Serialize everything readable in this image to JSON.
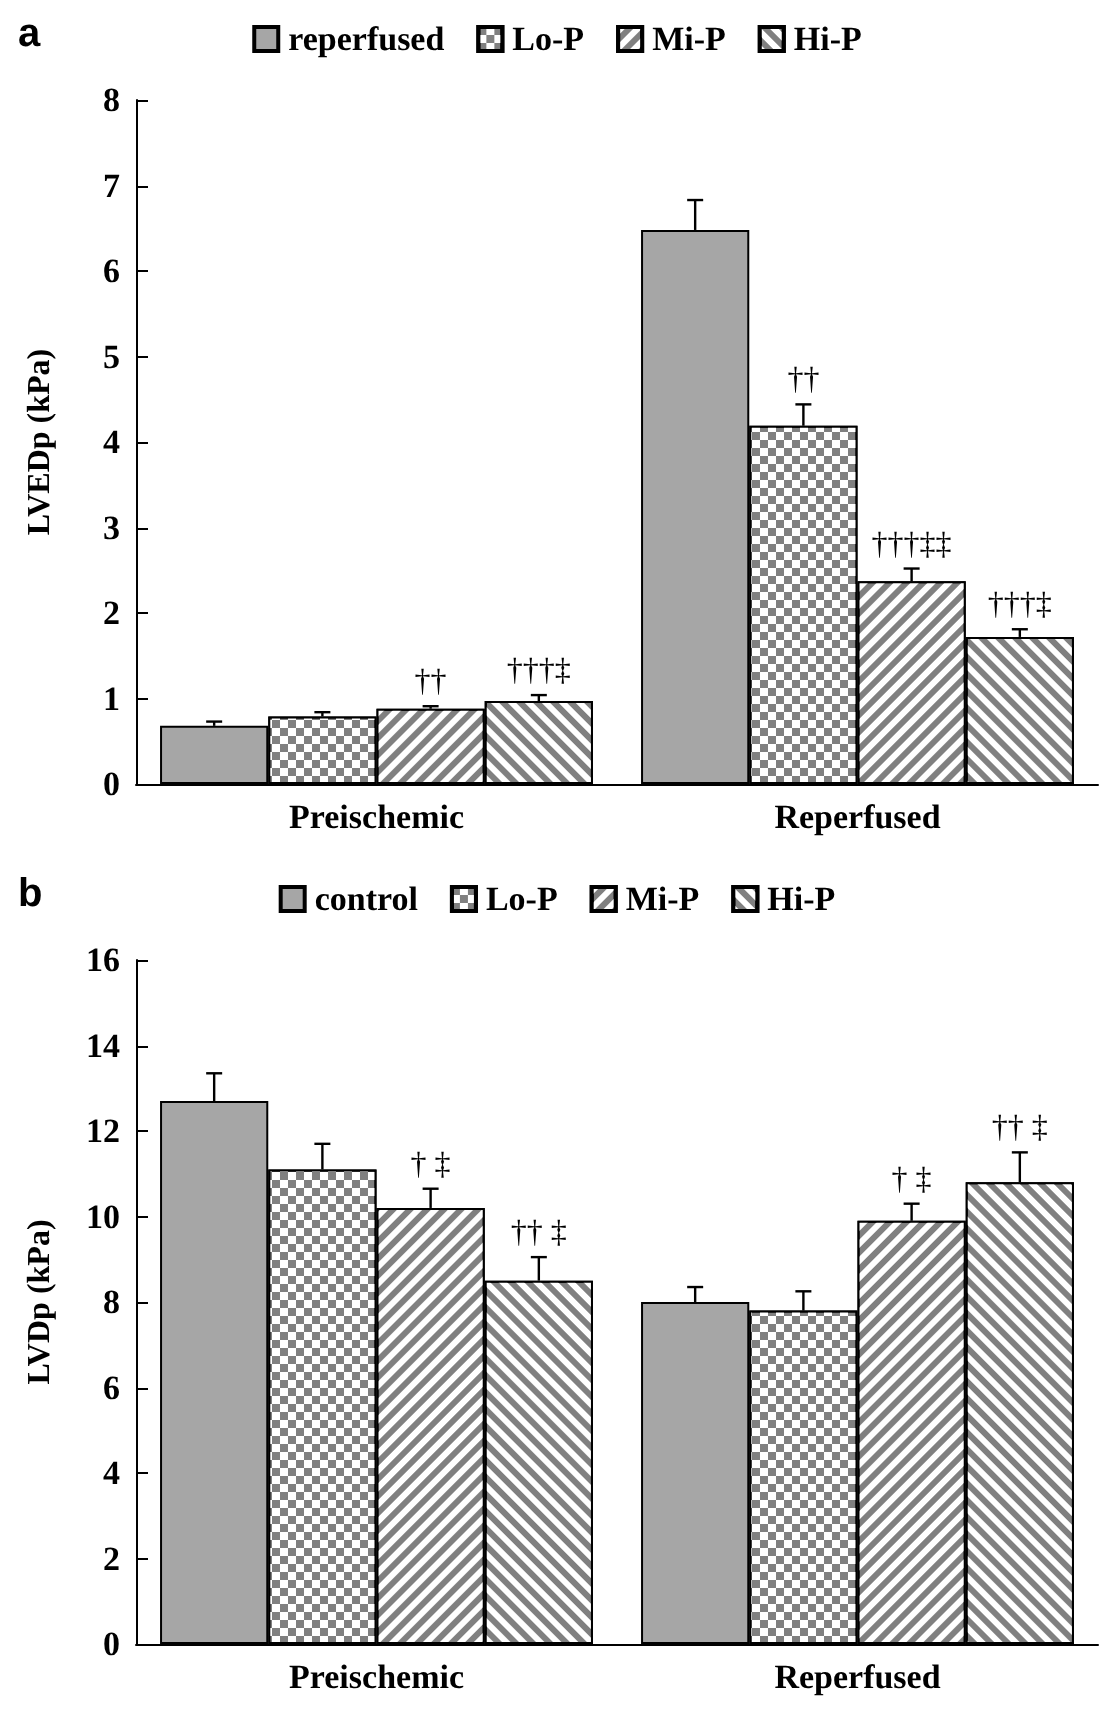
{
  "chart_data": [
    {
      "type": "bar",
      "title": "a",
      "ylabel": "LVEDp (kPa)",
      "categories": [
        "Preischemic",
        "Reperfused"
      ],
      "ylim": [
        0,
        8
      ],
      "yticks": [
        0,
        1,
        2,
        3,
        4,
        5,
        6,
        7,
        8
      ],
      "legend": "top",
      "series": [
        {
          "name": "reperfused",
          "color": "#a6a6a6",
          "values": [
            0.68,
            6.48
          ],
          "errors": [
            0.05,
            0.35
          ]
        },
        {
          "name": "Lo-P",
          "color": "#808080",
          "values": [
            0.79,
            4.19
          ],
          "errors": [
            0.05,
            0.25
          ],
          "value_labels": [
            null,
            "††"
          ]
        },
        {
          "name": "Mi-P",
          "color": "#808080",
          "values": [
            0.88,
            2.37
          ],
          "errors": [
            0.03,
            0.15
          ],
          "value_labels": [
            "††",
            "†††‡‡"
          ]
        },
        {
          "name": "Hi-P",
          "color": "#808080",
          "values": [
            0.97,
            1.72
          ],
          "errors": [
            0.07,
            0.09
          ],
          "value_labels": [
            "†††‡",
            "†††‡"
          ]
        }
      ]
    },
    {
      "type": "bar",
      "title": "b",
      "ylabel": "LVDp (kPa)",
      "categories": [
        "Preischemic",
        "Reperfused"
      ],
      "ylim": [
        0,
        16
      ],
      "yticks": [
        0,
        2,
        4,
        6,
        8,
        10,
        12,
        14,
        16
      ],
      "legend": "top",
      "series": [
        {
          "name": "control",
          "color": "#a6a6a6",
          "values": [
            12.7,
            8.0
          ],
          "errors": [
            0.65,
            0.35
          ]
        },
        {
          "name": "Lo-P",
          "color": "#808080",
          "values": [
            11.1,
            7.8
          ],
          "errors": [
            0.6,
            0.45
          ]
        },
        {
          "name": "Mi-P",
          "color": "#808080",
          "values": [
            10.2,
            9.9
          ],
          "errors": [
            0.45,
            0.4
          ],
          "value_labels": [
            "† ‡",
            "† ‡"
          ]
        },
        {
          "name": "Hi-P",
          "color": "#808080",
          "values": [
            8.5,
            10.8
          ],
          "errors": [
            0.55,
            0.7
          ],
          "value_labels": [
            "†† ‡",
            "†† ‡"
          ]
        }
      ]
    }
  ]
}
